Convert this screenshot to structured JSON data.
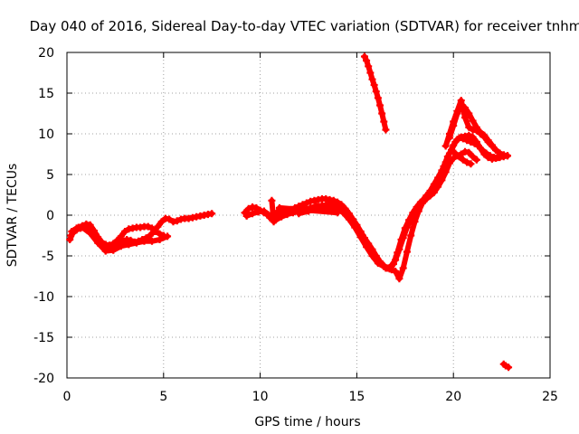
{
  "chart_data": {
    "type": "scatter",
    "title": "Day 040 of 2016, Sidereal Day-to-day VTEC variation (SDTVAR) for receiver tnhm",
    "xlabel": "GPS time / hours",
    "ylabel": "SDTVAR / TECUs",
    "xlim": [
      0,
      25
    ],
    "ylim": [
      -20,
      20
    ],
    "xticks": [
      0,
      5,
      10,
      15,
      20,
      25
    ],
    "yticks": [
      -20,
      -15,
      -10,
      -5,
      0,
      5,
      10,
      15,
      20
    ],
    "grid": true,
    "marker": "plus",
    "color": "#ff0000",
    "series": [
      {
        "points": [
          [
            0.15,
            -3.0
          ],
          [
            0.3,
            -2.2
          ],
          [
            0.5,
            -1.8
          ],
          [
            0.7,
            -1.6
          ],
          [
            0.9,
            -1.4
          ],
          [
            1.1,
            -1.3
          ],
          [
            1.3,
            -1.7
          ],
          [
            1.5,
            -2.4
          ],
          [
            1.7,
            -3.2
          ],
          [
            1.9,
            -3.8
          ],
          [
            2.1,
            -4.1
          ],
          [
            2.3,
            -4.2
          ],
          [
            2.5,
            -3.9
          ],
          [
            2.7,
            -3.5
          ],
          [
            2.9,
            -3.2
          ],
          [
            3.1,
            -3.0
          ],
          [
            3.3,
            -3.1
          ],
          [
            3.5,
            -3.3
          ],
          [
            3.7,
            -3.2
          ],
          [
            3.9,
            -3.0
          ],
          [
            4.1,
            -2.8
          ],
          [
            4.3,
            -2.5
          ],
          [
            4.5,
            -2.0
          ],
          [
            4.7,
            -1.4
          ],
          [
            4.9,
            -0.8
          ],
          [
            5.1,
            -0.4
          ],
          [
            5.3,
            -0.5
          ],
          [
            5.5,
            -0.8
          ],
          [
            5.7,
            -0.7
          ],
          [
            5.9,
            -0.5
          ],
          [
            6.1,
            -0.4
          ],
          [
            6.3,
            -0.4
          ],
          [
            6.5,
            -0.3
          ],
          [
            6.7,
            -0.2
          ],
          [
            6.9,
            -0.1
          ],
          [
            7.1,
            0.0
          ],
          [
            7.3,
            0.1
          ],
          [
            7.5,
            0.2
          ]
        ]
      },
      {
        "points": [
          [
            0.2,
            -2.5
          ],
          [
            0.4,
            -1.9
          ],
          [
            0.6,
            -1.5
          ],
          [
            0.8,
            -1.3
          ],
          [
            1.0,
            -1.1
          ],
          [
            1.2,
            -1.2
          ],
          [
            1.4,
            -1.9
          ],
          [
            1.6,
            -2.7
          ],
          [
            1.8,
            -3.3
          ],
          [
            2.0,
            -3.6
          ],
          [
            2.2,
            -3.7
          ],
          [
            2.4,
            -3.5
          ],
          [
            2.6,
            -3.1
          ],
          [
            2.8,
            -2.6
          ],
          [
            3.0,
            -2.0
          ],
          [
            3.2,
            -1.7
          ],
          [
            3.4,
            -1.6
          ],
          [
            3.6,
            -1.5
          ],
          [
            3.8,
            -1.5
          ],
          [
            4.0,
            -1.4
          ],
          [
            4.2,
            -1.4
          ],
          [
            4.4,
            -1.6
          ],
          [
            4.6,
            -2.0
          ],
          [
            4.8,
            -2.3
          ],
          [
            5.0,
            -2.5
          ]
        ]
      },
      {
        "points": [
          [
            0.25,
            -2.0
          ],
          [
            0.5,
            -1.6
          ],
          [
            0.8,
            -1.5
          ],
          [
            1.2,
            -2.2
          ],
          [
            1.6,
            -3.4
          ],
          [
            2.0,
            -4.4
          ],
          [
            2.4,
            -4.3
          ],
          [
            2.8,
            -3.8
          ],
          [
            3.2,
            -3.6
          ],
          [
            3.6,
            -3.4
          ],
          [
            4.0,
            -3.2
          ],
          [
            4.4,
            -3.2
          ],
          [
            4.8,
            -3.0
          ],
          [
            5.2,
            -2.6
          ]
        ]
      },
      {
        "points": [
          [
            9.2,
            0.3
          ],
          [
            9.4,
            0.8
          ],
          [
            9.6,
            1.0
          ],
          [
            9.8,
            0.9
          ],
          [
            10.0,
            0.6
          ],
          [
            10.2,
            0.3
          ],
          [
            10.4,
            0.1
          ],
          [
            10.6,
            0.0
          ],
          [
            10.8,
            0.2
          ],
          [
            11.0,
            0.4
          ],
          [
            11.2,
            0.5
          ],
          [
            11.4,
            0.6
          ],
          [
            11.6,
            0.7
          ],
          [
            11.8,
            0.9
          ],
          [
            12.0,
            1.1
          ],
          [
            12.2,
            1.3
          ],
          [
            12.4,
            1.5
          ],
          [
            12.6,
            1.7
          ],
          [
            12.8,
            1.8
          ],
          [
            13.0,
            1.9
          ],
          [
            13.2,
            2.0
          ],
          [
            13.4,
            2.0
          ],
          [
            13.6,
            1.9
          ],
          [
            13.8,
            1.8
          ],
          [
            14.0,
            1.6
          ],
          [
            14.2,
            1.3
          ],
          [
            14.4,
            0.8
          ],
          [
            14.6,
            0.2
          ],
          [
            14.8,
            -0.5
          ],
          [
            15.0,
            -1.2
          ],
          [
            15.2,
            -2.0
          ],
          [
            15.4,
            -2.8
          ],
          [
            15.6,
            -3.5
          ],
          [
            15.8,
            -4.2
          ],
          [
            16.0,
            -5.0
          ],
          [
            16.2,
            -5.7
          ],
          [
            16.4,
            -6.2
          ],
          [
            16.6,
            -6.5
          ],
          [
            16.8,
            -6.2
          ],
          [
            17.0,
            -5.5
          ],
          [
            17.2,
            -4.2
          ],
          [
            17.4,
            -2.8
          ],
          [
            17.6,
            -1.5
          ],
          [
            17.8,
            -0.5
          ],
          [
            18.0,
            0.5
          ],
          [
            18.2,
            1.2
          ],
          [
            18.4,
            1.8
          ],
          [
            18.6,
            2.4
          ],
          [
            18.8,
            3.0
          ],
          [
            19.0,
            3.8
          ],
          [
            19.2,
            4.6
          ],
          [
            19.4,
            5.5
          ],
          [
            19.6,
            6.5
          ],
          [
            19.8,
            7.6
          ],
          [
            20.0,
            8.6
          ],
          [
            20.2,
            9.3
          ],
          [
            20.4,
            9.6
          ],
          [
            20.6,
            9.7
          ],
          [
            20.8,
            9.8
          ],
          [
            21.0,
            9.6
          ],
          [
            21.2,
            9.0
          ],
          [
            21.4,
            8.2
          ],
          [
            21.6,
            7.5
          ],
          [
            21.8,
            7.1
          ],
          [
            22.0,
            6.9
          ],
          [
            22.2,
            7.0
          ],
          [
            22.4,
            7.1
          ],
          [
            22.6,
            7.2
          ],
          [
            22.8,
            7.3
          ]
        ]
      },
      {
        "points": [
          [
            9.3,
            -0.1
          ],
          [
            9.6,
            0.2
          ],
          [
            9.9,
            0.4
          ],
          [
            10.2,
            0.5
          ],
          [
            10.5,
            -0.3
          ],
          [
            10.8,
            -0.6
          ],
          [
            11.1,
            -0.2
          ],
          [
            11.4,
            0.1
          ],
          [
            11.7,
            0.3
          ],
          [
            12.0,
            0.5
          ],
          [
            12.3,
            0.7
          ],
          [
            12.6,
            0.9
          ],
          [
            12.9,
            1.1
          ],
          [
            13.2,
            1.2
          ],
          [
            13.5,
            1.3
          ],
          [
            13.8,
            1.3
          ],
          [
            14.1,
            1.1
          ],
          [
            14.4,
            0.5
          ],
          [
            14.7,
            -0.3
          ],
          [
            15.0,
            -1.3
          ],
          [
            15.3,
            -2.5
          ],
          [
            15.6,
            -3.8
          ],
          [
            15.9,
            -4.9
          ],
          [
            16.2,
            -5.8
          ],
          [
            16.5,
            -6.5
          ],
          [
            16.8,
            -6.7
          ],
          [
            17.0,
            -6.9
          ],
          [
            17.2,
            -7.8
          ],
          [
            17.4,
            -6.5
          ],
          [
            17.6,
            -4.5
          ],
          [
            17.8,
            -2.5
          ],
          [
            18.0,
            -0.8
          ],
          [
            18.2,
            0.5
          ],
          [
            18.4,
            1.5
          ],
          [
            18.6,
            2.0
          ],
          [
            18.8,
            2.4
          ],
          [
            19.0,
            2.8
          ],
          [
            19.2,
            3.5
          ],
          [
            19.4,
            4.3
          ],
          [
            19.6,
            5.3
          ],
          [
            19.8,
            6.4
          ],
          [
            20.0,
            7.0
          ],
          [
            20.2,
            7.3
          ],
          [
            20.4,
            7.5
          ],
          [
            20.6,
            7.8
          ],
          [
            20.8,
            7.7
          ],
          [
            21.0,
            7.2
          ],
          [
            21.2,
            6.8
          ]
        ]
      },
      {
        "points": [
          [
            12.0,
            0.2
          ],
          [
            12.5,
            0.5
          ],
          [
            13.0,
            0.8
          ],
          [
            13.5,
            0.9
          ],
          [
            14.0,
            0.8
          ],
          [
            14.3,
            0.3
          ],
          [
            14.6,
            -0.5
          ],
          [
            14.9,
            -1.5
          ],
          [
            15.2,
            -2.7
          ],
          [
            15.5,
            -3.9
          ],
          [
            15.8,
            -5.0
          ],
          [
            16.1,
            -5.9
          ],
          [
            16.4,
            -6.3
          ],
          [
            16.7,
            -6.6
          ],
          [
            16.9,
            -6.0
          ],
          [
            17.1,
            -4.6
          ],
          [
            17.3,
            -3.0
          ],
          [
            17.5,
            -1.6
          ],
          [
            17.7,
            -0.6
          ],
          [
            17.9,
            0.3
          ],
          [
            18.1,
            1.0
          ],
          [
            18.3,
            1.6
          ],
          [
            18.5,
            1.9
          ]
        ]
      },
      {
        "points": [
          [
            19.8,
            9.5
          ],
          [
            20.0,
            11.0
          ],
          [
            20.2,
            12.5
          ],
          [
            20.4,
            13.6
          ],
          [
            20.6,
            13.2
          ],
          [
            20.8,
            12.5
          ],
          [
            21.0,
            11.6
          ],
          [
            21.2,
            10.8
          ],
          [
            21.4,
            10.0
          ],
          [
            21.6,
            9.6
          ],
          [
            21.8,
            9.0
          ],
          [
            22.0,
            8.5
          ],
          [
            22.2,
            8.0
          ],
          [
            22.4,
            7.6
          ],
          [
            22.6,
            7.4
          ],
          [
            22.8,
            7.3
          ]
        ]
      },
      {
        "points": [
          [
            19.6,
            8.5
          ],
          [
            19.8,
            10.0
          ],
          [
            20.0,
            11.5
          ],
          [
            20.2,
            12.8
          ],
          [
            20.4,
            14.1
          ],
          [
            20.6,
            12.0
          ],
          [
            20.8,
            10.8
          ],
          [
            21.0,
            10.5
          ],
          [
            21.2,
            10.4
          ],
          [
            21.4,
            10.2
          ],
          [
            21.6,
            9.8
          ],
          [
            21.8,
            9.2
          ],
          [
            22.0,
            8.6
          ],
          [
            22.2,
            8.0
          ],
          [
            22.4,
            7.6
          ],
          [
            22.6,
            7.4
          ]
        ]
      },
      {
        "points": [
          [
            19.5,
            6.0
          ],
          [
            19.7,
            7.2
          ],
          [
            19.9,
            8.0
          ],
          [
            20.1,
            9.0
          ],
          [
            20.3,
            9.5
          ],
          [
            20.5,
            9.4
          ],
          [
            20.7,
            9.2
          ],
          [
            20.9,
            9.0
          ],
          [
            21.1,
            8.8
          ],
          [
            21.3,
            8.5
          ],
          [
            21.5,
            8.0
          ],
          [
            21.7,
            7.6
          ],
          [
            21.9,
            7.3
          ],
          [
            22.1,
            7.1
          ],
          [
            22.3,
            7.1
          ]
        ]
      },
      {
        "points": [
          [
            19.9,
            8.0
          ],
          [
            20.1,
            7.6
          ],
          [
            20.3,
            7.2
          ],
          [
            20.5,
            6.8
          ],
          [
            20.7,
            6.5
          ],
          [
            20.9,
            6.3
          ]
        ]
      },
      {
        "points": [
          [
            15.4,
            19.5
          ],
          [
            15.5,
            19.0
          ],
          [
            15.6,
            18.3
          ],
          [
            15.7,
            17.5
          ],
          [
            15.8,
            16.7
          ],
          [
            15.9,
            16.0
          ],
          [
            16.0,
            15.2
          ],
          [
            16.1,
            14.4
          ],
          [
            16.2,
            13.5
          ],
          [
            16.3,
            12.5
          ],
          [
            16.4,
            11.5
          ],
          [
            16.5,
            10.5
          ]
        ]
      },
      {
        "points": [
          [
            22.6,
            -18.3
          ],
          [
            22.7,
            -18.5
          ],
          [
            22.85,
            -18.7
          ]
        ]
      },
      {
        "points": [
          [
            10.6,
            1.8
          ],
          [
            10.7,
            -0.8
          ],
          [
            11.0,
            0.9
          ],
          [
            14.0,
            0.3
          ]
        ]
      }
    ]
  }
}
